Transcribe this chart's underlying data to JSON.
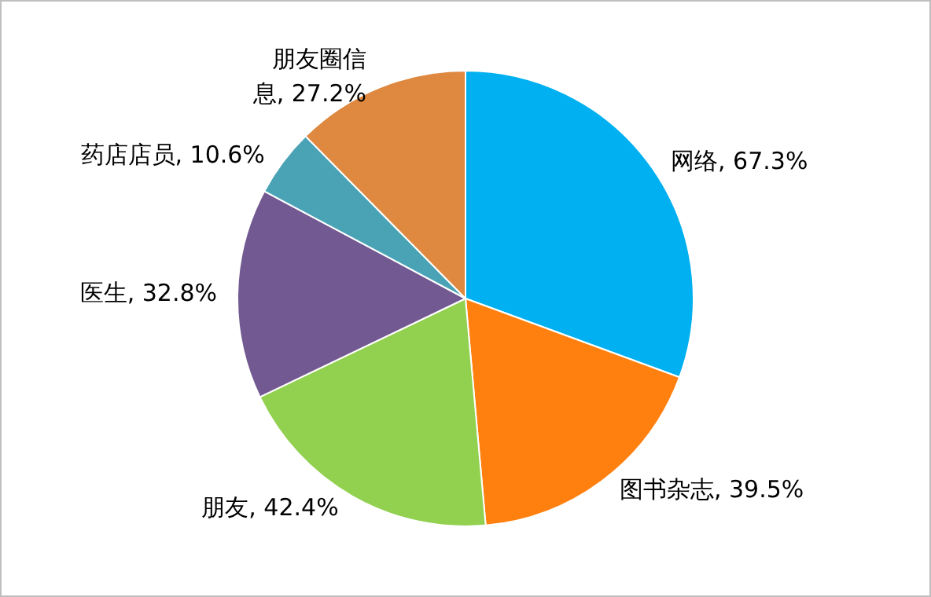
{
  "chart_data": {
    "type": "pie",
    "categories": [
      "网络",
      "图书杂志",
      "朋友",
      "医生",
      "药店店员",
      "朋友圈信息"
    ],
    "values": [
      67.3,
      39.5,
      42.4,
      32.8,
      10.6,
      27.2
    ],
    "colors": [
      "#00b0f0",
      "#ff800f",
      "#92d050",
      "#725991",
      "#4aa3b5",
      "#de8840"
    ],
    "value_labels": [
      "67.3%",
      "39.5%",
      "42.4%",
      "32.8%",
      "10.6%",
      "27.2%"
    ],
    "legend": false
  }
}
